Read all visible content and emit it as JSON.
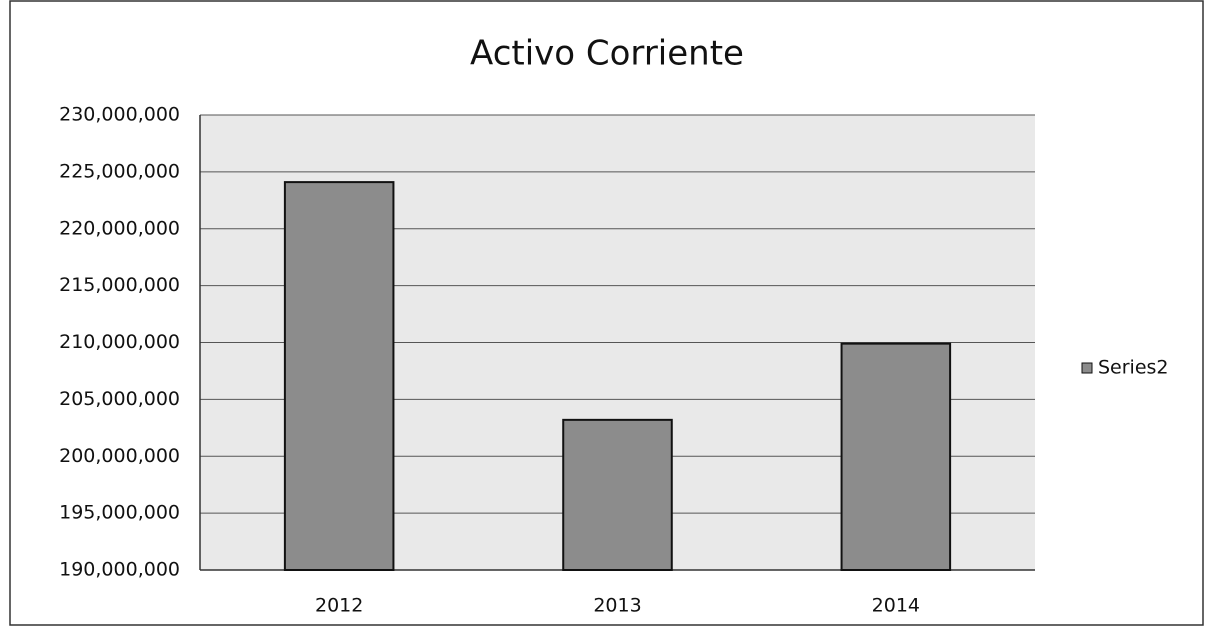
{
  "chart_data": {
    "type": "bar",
    "title": "Activo Corriente",
    "categories": [
      "2012",
      "2013",
      "2014"
    ],
    "series": [
      {
        "name": "Series2",
        "color": "#8c8c8c",
        "values": [
          224100000,
          203200000,
          209900000
        ]
      }
    ],
    "ylim": [
      190000000,
      230000000
    ],
    "yticks": [
      {
        "value": 190000000,
        "label": "190,000,000"
      },
      {
        "value": 195000000,
        "label": "195,000,000"
      },
      {
        "value": 200000000,
        "label": "200,000,000"
      },
      {
        "value": 205000000,
        "label": "205,000,000"
      },
      {
        "value": 210000000,
        "label": "210,000,000"
      },
      {
        "value": 215000000,
        "label": "215,000,000"
      },
      {
        "value": 220000000,
        "label": "220,000,000"
      },
      {
        "value": 225000000,
        "label": "225,000,000"
      },
      {
        "value": 230000000,
        "label": "230,000,000"
      }
    ],
    "grid": true,
    "legend": "right"
  }
}
